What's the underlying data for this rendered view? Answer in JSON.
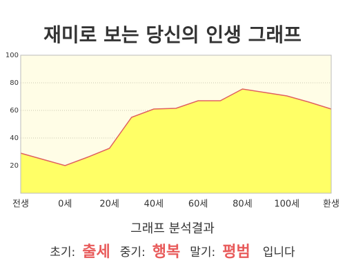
{
  "chart_data": {
    "type": "area",
    "title": "재미로 보는 당신의 인생 그래프",
    "categories": [
      "전생",
      null,
      "0세",
      null,
      "20세",
      null,
      "40세",
      null,
      "60세",
      null,
      "80세",
      null,
      "100세",
      null,
      "환생"
    ],
    "values": [
      29,
      24.5,
      20,
      26,
      32.5,
      55,
      61,
      61.5,
      67,
      67,
      75.5,
      73,
      70.5,
      66,
      61
    ],
    "color": "#ffff66",
    "line_color": "#e06060",
    "ylim": [
      0,
      100
    ],
    "yticks": [
      20,
      40,
      60,
      80,
      100
    ],
    "grid": true
  },
  "analysis": {
    "heading": "그래프 분석결과",
    "items": [
      {
        "label": "초기:",
        "value": "출세"
      },
      {
        "label": "중기:",
        "value": "행복"
      },
      {
        "label": "말기:",
        "value": "평범"
      }
    ],
    "ending": "입니다"
  }
}
